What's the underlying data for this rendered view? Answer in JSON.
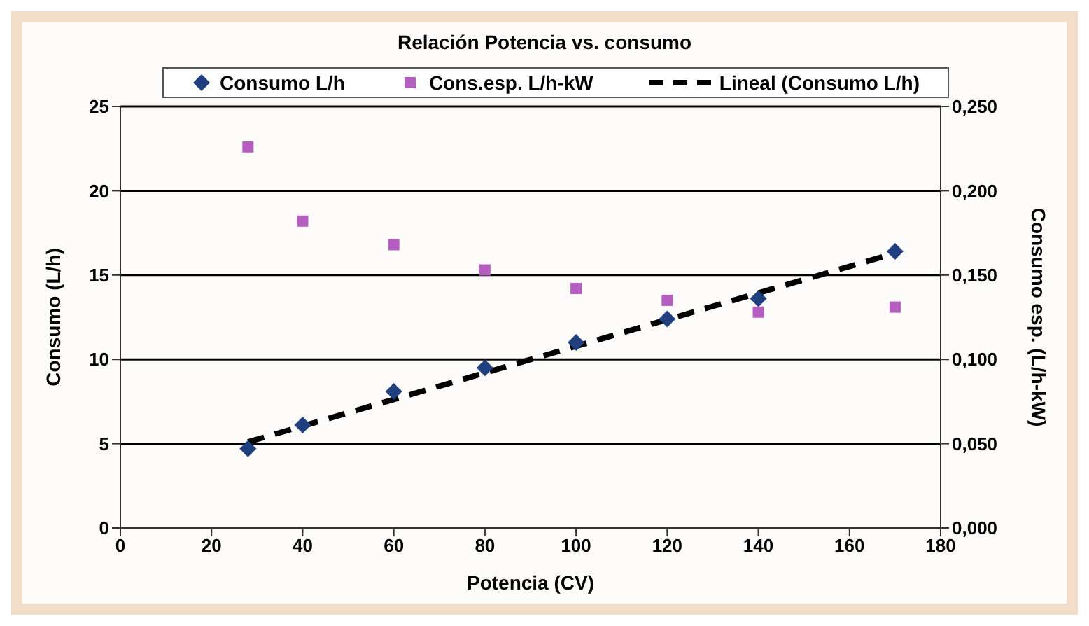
{
  "chart_data": {
    "type": "scatter",
    "title": "Relación Potencia vs. consumo",
    "xlabel": "Potencia (CV)",
    "ylabel": "Consumo (L/h)",
    "y2label": "Consumo esp. (L/h-kW)",
    "series": [
      {
        "name": "Consumo L/h",
        "color": "#1f3f7f",
        "marker": "diamond",
        "x": [
          28,
          40,
          60,
          80,
          100,
          120,
          140,
          170
        ],
        "values": [
          4.7,
          6.1,
          8.1,
          9.5,
          11,
          12.4,
          13.6,
          16.4
        ]
      },
      {
        "name": "Cons.esp. L/h-kW",
        "axis": "y2",
        "color": "#b45fc0",
        "marker": "square",
        "x": [
          28,
          40,
          60,
          80,
          100,
          120,
          140,
          170
        ],
        "values": [
          0.226,
          0.182,
          0.168,
          0.153,
          0.142,
          0.135,
          0.128,
          0.131
        ]
      },
      {
        "name": "Lineal (Consumo L/h)",
        "type": "line",
        "color": "#000000",
        "line_style": "dashed",
        "marker": "none",
        "x": [
          28,
          170
        ],
        "values": [
          5.1,
          16.3
        ]
      }
    ],
    "xlim": [
      0,
      180
    ],
    "xticks": [
      0,
      20,
      40,
      60,
      80,
      100,
      120,
      140,
      160,
      180
    ],
    "ylim": [
      0,
      25
    ],
    "yticks": [
      0,
      5,
      10,
      15,
      20,
      25
    ],
    "y2lim": [
      0,
      0.25
    ],
    "y2ticks": [
      {
        "value": 0,
        "label": "0,000"
      },
      {
        "value": 0.05,
        "label": "0,050"
      },
      {
        "value": 0.1,
        "label": "0,100"
      },
      {
        "value": 0.15,
        "label": "0,150"
      },
      {
        "value": 0.2,
        "label": "0,200"
      },
      {
        "value": 0.25,
        "label": "0,250"
      }
    ],
    "grid": "y",
    "legend": "top"
  }
}
